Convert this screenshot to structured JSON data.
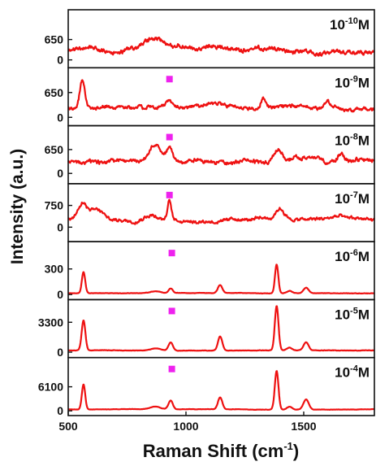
{
  "chart_data": {
    "type": "line",
    "xlabel_main": "Raman Shift (cm",
    "xlabel_sup": "-1",
    "xlabel_close": ")",
    "ylabel": "Intensity (a.u.)",
    "xlim": [
      500,
      1800
    ],
    "x_ticks": [
      500,
      1000,
      1500
    ],
    "line_color": "#ee1111",
    "marker_color": "#ee22ee",
    "panels": [
      {
        "label_base": "10",
        "label_exp": "-10",
        "label_unit": "M",
        "ylim": [
          -250,
          1600
        ],
        "ticks": [
          0,
          650
        ],
        "marker_x": null,
        "noise": 200,
        "baseline": 280,
        "peaks": [
          [
            860,
            380,
            70
          ],
          [
            600,
            120,
            60
          ],
          [
            1000,
            80,
            80
          ]
        ]
      },
      {
        "label_base": "10",
        "label_exp": "-9",
        "label_unit": "M",
        "ylim": [
          -220,
          1300
        ],
        "ticks": [
          0,
          650
        ],
        "marker_x": 930,
        "noise": 140,
        "baseline": 250,
        "peaks": [
          [
            560,
            700,
            14
          ],
          [
            930,
            180,
            25
          ],
          [
            1330,
            280,
            18
          ],
          [
            1600,
            250,
            14
          ],
          [
            1100,
            80,
            90
          ]
        ]
      },
      {
        "label_base": "10",
        "label_exp": "-8",
        "label_unit": "M",
        "ylim": [
          -280,
          1300
        ],
        "ticks": [
          0,
          650
        ],
        "marker_x": 930,
        "noise": 160,
        "baseline": 330,
        "peaks": [
          [
            870,
            420,
            35
          ],
          [
            930,
            330,
            18
          ],
          [
            1390,
            300,
            25
          ],
          [
            1660,
            240,
            20
          ],
          [
            1520,
            100,
            60
          ]
        ]
      },
      {
        "label_base": "10",
        "label_exp": "-7",
        "label_unit": "M",
        "ylim": [
          -500,
          1500
        ],
        "ticks": [
          0,
          750
        ],
        "marker_x": 930,
        "noise": 170,
        "baseline": 250,
        "peaks": [
          [
            560,
            540,
            28
          ],
          [
            620,
            380,
            40
          ],
          [
            850,
            270,
            45
          ],
          [
            930,
            650,
            12
          ],
          [
            1400,
            360,
            25
          ],
          [
            1650,
            100,
            40
          ]
        ]
      },
      {
        "label_base": "10",
        "label_exp": "-6",
        "label_unit": "M",
        "ylim": [
          -60,
          620
        ],
        "ticks": [
          0,
          300
        ],
        "marker_x": 940,
        "noise": 7,
        "baseline": 15,
        "peaks": [
          [
            565,
            250,
            10
          ],
          [
            935,
            55,
            12
          ],
          [
            1145,
            95,
            13
          ],
          [
            1385,
            340,
            10
          ],
          [
            1440,
            25,
            15
          ],
          [
            1510,
            65,
            15
          ],
          [
            870,
            20,
            30
          ]
        ]
      },
      {
        "label_base": "10",
        "label_exp": "-5",
        "label_unit": "M",
        "ylim": [
          -600,
          5800
        ],
        "ticks": [
          0,
          3300
        ],
        "marker_x": 940,
        "noise": 70,
        "baseline": 180,
        "peaks": [
          [
            565,
            3300,
            11
          ],
          [
            935,
            900,
            13
          ],
          [
            1145,
            1550,
            13
          ],
          [
            1385,
            4900,
            11
          ],
          [
            1440,
            300,
            15
          ],
          [
            1510,
            900,
            15
          ],
          [
            870,
            250,
            30
          ]
        ]
      },
      {
        "label_base": "10",
        "label_exp": "-4",
        "label_unit": "M",
        "ylim": [
          -1200,
          13500
        ],
        "ticks": [
          0,
          6100
        ],
        "marker_x": 940,
        "noise": 120,
        "baseline": 380,
        "peaks": [
          [
            565,
            6400,
            10
          ],
          [
            935,
            2200,
            13
          ],
          [
            1145,
            3000,
            13
          ],
          [
            1385,
            9800,
            11
          ],
          [
            1440,
            700,
            15
          ],
          [
            1510,
            2600,
            16
          ],
          [
            870,
            700,
            30
          ]
        ]
      }
    ]
  }
}
